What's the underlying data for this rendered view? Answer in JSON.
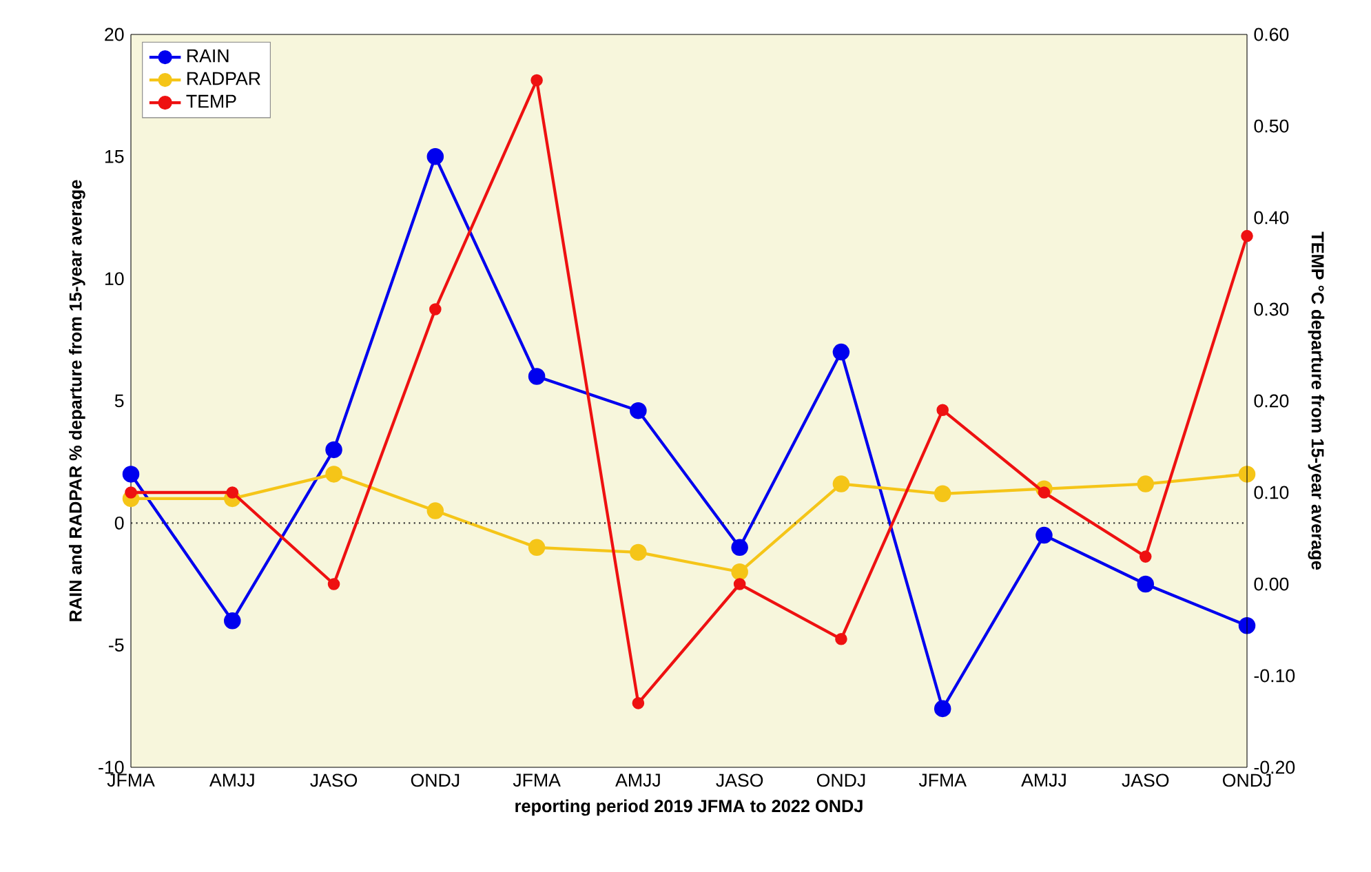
{
  "chart_data": {
    "type": "line",
    "xlabel": "reporting period 2019 JFMA to 2022 ONDJ",
    "ylabel": "RAIN and RADPAR % departure from 15-year average",
    "y2label": "TEMP °C departure from 15-year average",
    "categories": [
      "JFMA",
      "AMJJ",
      "JASO",
      "ONDJ",
      "JFMA",
      "AMJJ",
      "JASO",
      "ONDJ",
      "JFMA",
      "AMJJ",
      "JASO",
      "ONDJ"
    ],
    "series": [
      {
        "name": "RAIN",
        "color": "#0000ee",
        "values": [
          2,
          -4,
          3,
          15,
          6,
          4.6,
          -1,
          7,
          -7.6,
          -0.5,
          -2.5,
          -4.2
        ]
      },
      {
        "name": "RADPAR",
        "color": "#f5c518",
        "values": [
          1,
          1,
          2,
          0.5,
          -1,
          -1.2,
          -2,
          1.6,
          1.2,
          1.4,
          1.6,
          2
        ]
      },
      {
        "name": "TEMP",
        "color": "#ee1111",
        "axis": "y2",
        "values": [
          0.1,
          0.1,
          0.0,
          0.3,
          0.55,
          -0.13,
          0.0,
          -0.06,
          0.19,
          0.1,
          0.03,
          0.38
        ]
      }
    ],
    "ylim": [
      -10,
      20
    ],
    "yticks": [
      -10,
      -5,
      0,
      5,
      10,
      15,
      20
    ],
    "y2lim": [
      -0.2,
      0.6
    ],
    "y2ticks": [
      {
        "value": -0.2,
        "label": "-0.20"
      },
      {
        "value": -0.1,
        "label": "-0.10"
      },
      {
        "value": 0,
        "label": "0.00"
      },
      {
        "value": 0.1,
        "label": "0.10"
      },
      {
        "value": 0.2,
        "label": "0.20"
      },
      {
        "value": 0.3,
        "label": "0.30"
      },
      {
        "value": 0.4,
        "label": "0.40"
      },
      {
        "value": 0.5,
        "label": "0.50"
      },
      {
        "value": 0.6,
        "label": "0.60"
      }
    ],
    "ref_lines": [
      {
        "axis": "y",
        "value": 0,
        "line_style": "dotted",
        "color": "#333333"
      }
    ],
    "grid": false,
    "legend": "top left",
    "marker": "circle",
    "line_style": "solid"
  }
}
